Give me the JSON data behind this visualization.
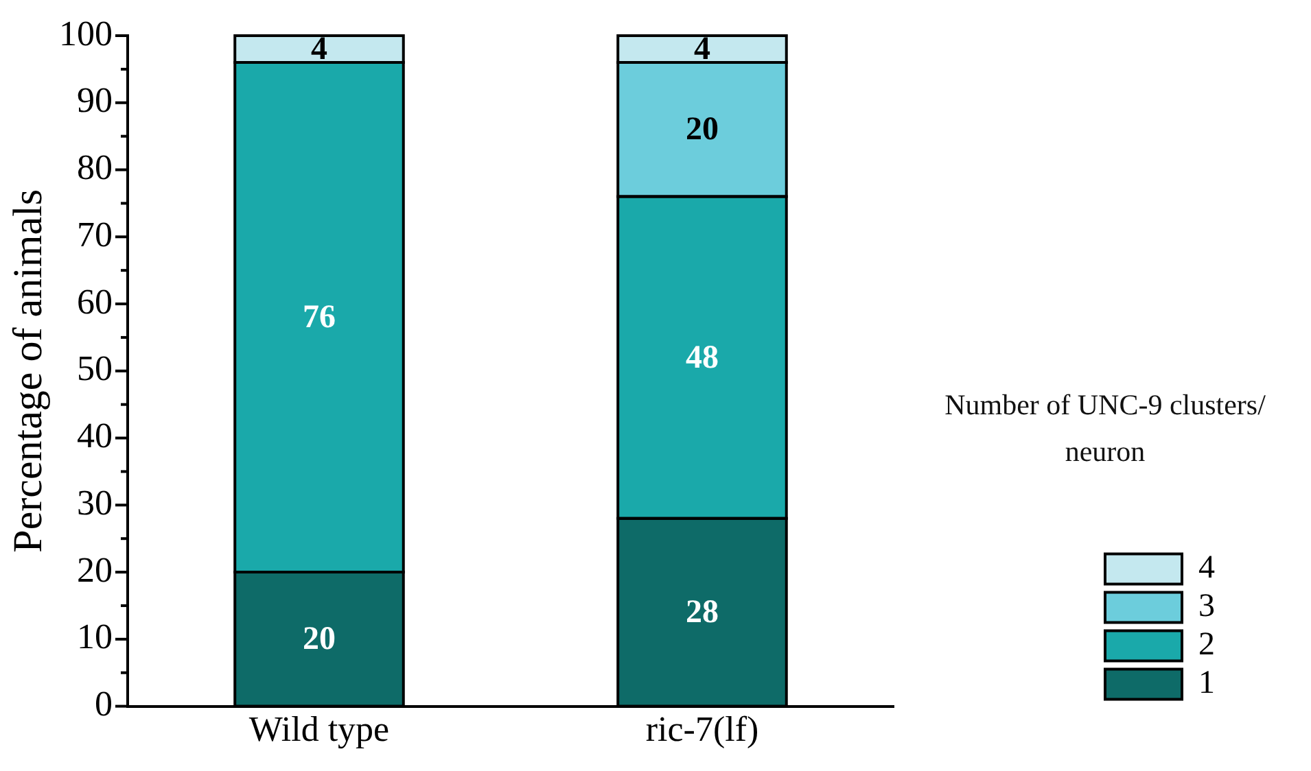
{
  "chart_data": {
    "type": "bar",
    "stacked": true,
    "ylabel": "Percentage of animals",
    "legend_title": "Number of UNC-9 clusters/ neuron",
    "legend": "right",
    "grid": false,
    "categories": [
      "Wild type",
      "ric-7(lf)"
    ],
    "ylim": [
      0,
      100
    ],
    "yticks": [
      0,
      10,
      20,
      30,
      40,
      50,
      60,
      70,
      80,
      90,
      100
    ],
    "series": [
      {
        "name": "1",
        "color": "#0e6b68",
        "values": [
          20,
          28
        ],
        "value_labels": [
          "20",
          "28"
        ]
      },
      {
        "name": "2",
        "color": "#1aa9aa",
        "values": [
          76,
          48
        ],
        "value_labels": [
          "76",
          "48"
        ]
      },
      {
        "name": "3",
        "color": "#6ccddc",
        "values": [
          0,
          20
        ],
        "value_labels": [
          null,
          "20"
        ]
      },
      {
        "name": "4",
        "color": "#c4e8ef",
        "values": [
          4,
          4
        ],
        "value_labels": [
          "4",
          "4"
        ]
      }
    ]
  }
}
